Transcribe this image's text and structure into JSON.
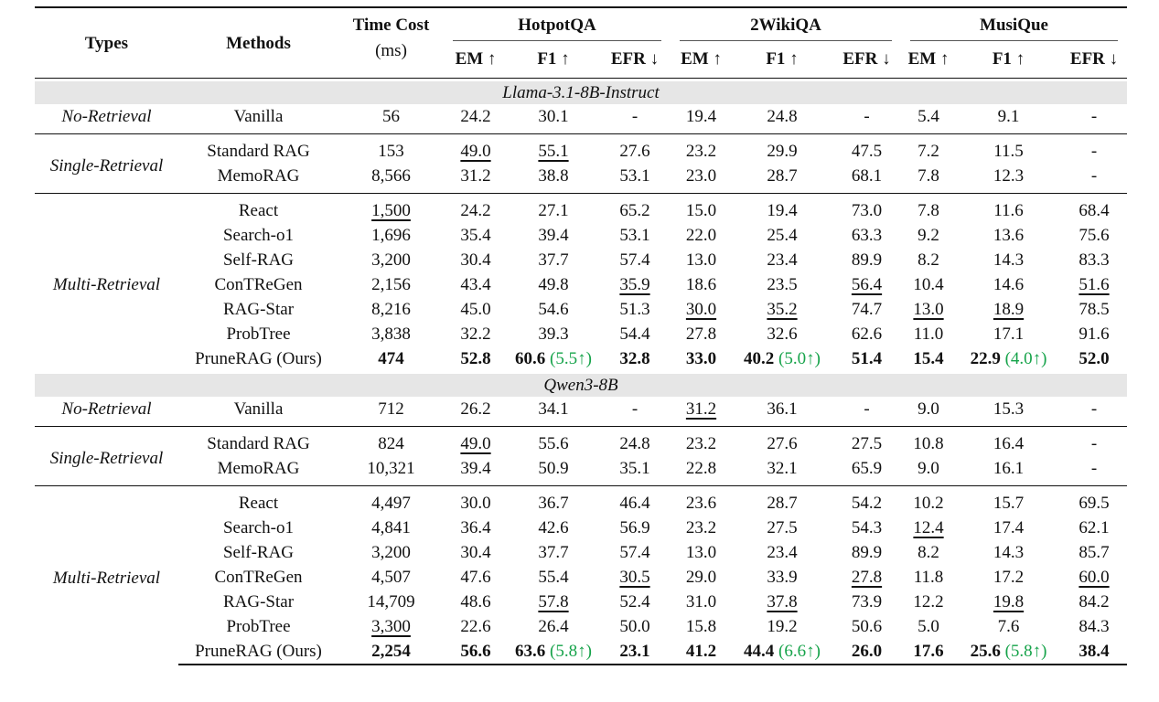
{
  "header": {
    "types": "Types",
    "methods": "Methods",
    "time_cost": "Time Cost",
    "time_unit": "(ms)",
    "datasets": [
      "HotpotQA",
      "2WikiQA",
      "MusiQue"
    ],
    "metrics": [
      "EM ↑",
      "F1 ↑",
      "EFR ↓"
    ]
  },
  "colors": {
    "gain": "#16a34a",
    "band": "#e6e6e6"
  },
  "groups": [
    {
      "model": "Llama-3.1-8B-Instruct",
      "sections": [
        {
          "type": "No-Retrieval",
          "rows": [
            {
              "method": "Vanilla",
              "time": {
                "v": "56"
              },
              "cells": [
                {
                  "v": "24.2"
                },
                {
                  "v": "30.1"
                },
                {
                  "v": "-"
                },
                {
                  "v": "19.4"
                },
                {
                  "v": "24.8"
                },
                {
                  "v": "-"
                },
                {
                  "v": "5.4"
                },
                {
                  "v": "9.1"
                },
                {
                  "v": "-"
                }
              ]
            }
          ]
        },
        {
          "type": "Single-Retrieval",
          "rows": [
            {
              "method": "Standard RAG",
              "time": {
                "v": "153"
              },
              "cells": [
                {
                  "v": "49.0",
                  "u": true
                },
                {
                  "v": "55.1",
                  "u": true
                },
                {
                  "v": "27.6"
                },
                {
                  "v": "23.2"
                },
                {
                  "v": "29.9"
                },
                {
                  "v": "47.5"
                },
                {
                  "v": "7.2"
                },
                {
                  "v": "11.5"
                },
                {
                  "v": "-"
                }
              ]
            },
            {
              "method": "MemoRAG",
              "time": {
                "v": "8,566"
              },
              "cells": [
                {
                  "v": "31.2"
                },
                {
                  "v": "38.8"
                },
                {
                  "v": "53.1"
                },
                {
                  "v": "23.0"
                },
                {
                  "v": "28.7"
                },
                {
                  "v": "68.1"
                },
                {
                  "v": "7.8"
                },
                {
                  "v": "12.3"
                },
                {
                  "v": "-"
                }
              ]
            }
          ]
        },
        {
          "type": "Multi-Retrieval",
          "rows": [
            {
              "method": "React",
              "time": {
                "v": "1,500",
                "u": true
              },
              "cells": [
                {
                  "v": "24.2"
                },
                {
                  "v": "27.1"
                },
                {
                  "v": "65.2"
                },
                {
                  "v": "15.0"
                },
                {
                  "v": "19.4"
                },
                {
                  "v": "73.0"
                },
                {
                  "v": "7.8"
                },
                {
                  "v": "11.6"
                },
                {
                  "v": "68.4"
                }
              ]
            },
            {
              "method": "Search-o1",
              "time": {
                "v": "1,696"
              },
              "cells": [
                {
                  "v": "35.4"
                },
                {
                  "v": "39.4"
                },
                {
                  "v": "53.1"
                },
                {
                  "v": "22.0"
                },
                {
                  "v": "25.4"
                },
                {
                  "v": "63.3"
                },
                {
                  "v": "9.2"
                },
                {
                  "v": "13.6"
                },
                {
                  "v": "75.6"
                }
              ]
            },
            {
              "method": "Self-RAG",
              "time": {
                "v": "3,200"
              },
              "cells": [
                {
                  "v": "30.4"
                },
                {
                  "v": "37.7"
                },
                {
                  "v": "57.4"
                },
                {
                  "v": "13.0"
                },
                {
                  "v": "23.4"
                },
                {
                  "v": "89.9"
                },
                {
                  "v": "8.2"
                },
                {
                  "v": "14.3"
                },
                {
                  "v": "83.3"
                }
              ]
            },
            {
              "method": "ConTReGen",
              "time": {
                "v": "2,156"
              },
              "cells": [
                {
                  "v": "43.4"
                },
                {
                  "v": "49.8"
                },
                {
                  "v": "35.9",
                  "u": true
                },
                {
                  "v": "18.6"
                },
                {
                  "v": "23.5"
                },
                {
                  "v": "56.4",
                  "u": true
                },
                {
                  "v": "10.4"
                },
                {
                  "v": "14.6"
                },
                {
                  "v": "51.6",
                  "u": true
                }
              ]
            },
            {
              "method": "RAG-Star",
              "time": {
                "v": "8,216"
              },
              "cells": [
                {
                  "v": "45.0"
                },
                {
                  "v": "54.6"
                },
                {
                  "v": "51.3"
                },
                {
                  "v": "30.0",
                  "u": true
                },
                {
                  "v": "35.2",
                  "u": true
                },
                {
                  "v": "74.7"
                },
                {
                  "v": "13.0",
                  "u": true
                },
                {
                  "v": "18.9",
                  "u": true
                },
                {
                  "v": "78.5"
                }
              ]
            },
            {
              "method": "ProbTree",
              "time": {
                "v": "3,838"
              },
              "cells": [
                {
                  "v": "32.2"
                },
                {
                  "v": "39.3"
                },
                {
                  "v": "54.4"
                },
                {
                  "v": "27.8"
                },
                {
                  "v": "32.6"
                },
                {
                  "v": "62.6"
                },
                {
                  "v": "11.0"
                },
                {
                  "v": "17.1"
                },
                {
                  "v": "91.6"
                }
              ]
            },
            {
              "method": "PruneRAG (Ours)",
              "time": {
                "v": "474",
                "b": true
              },
              "cells": [
                {
                  "v": "52.8",
                  "b": true
                },
                {
                  "v": "60.6",
                  "b": true,
                  "gain": "(5.5↑)"
                },
                {
                  "v": "32.8",
                  "b": true
                },
                {
                  "v": "33.0",
                  "b": true
                },
                {
                  "v": "40.2",
                  "b": true,
                  "gain": "(5.0↑)"
                },
                {
                  "v": "51.4",
                  "b": true
                },
                {
                  "v": "15.4",
                  "b": true
                },
                {
                  "v": "22.9",
                  "b": true,
                  "gain": "(4.0↑)"
                },
                {
                  "v": "52.0",
                  "b": true
                }
              ]
            }
          ]
        }
      ]
    },
    {
      "model": "Qwen3-8B",
      "sections": [
        {
          "type": "No-Retrieval",
          "rows": [
            {
              "method": "Vanilla",
              "time": {
                "v": "712"
              },
              "cells": [
                {
                  "v": "26.2"
                },
                {
                  "v": "34.1"
                },
                {
                  "v": "-"
                },
                {
                  "v": "31.2",
                  "u": true
                },
                {
                  "v": "36.1"
                },
                {
                  "v": "-"
                },
                {
                  "v": "9.0"
                },
                {
                  "v": "15.3"
                },
                {
                  "v": "-"
                }
              ]
            }
          ]
        },
        {
          "type": "Single-Retrieval",
          "rows": [
            {
              "method": "Standard RAG",
              "time": {
                "v": "824"
              },
              "cells": [
                {
                  "v": "49.0",
                  "u": true
                },
                {
                  "v": "55.6"
                },
                {
                  "v": "24.8"
                },
                {
                  "v": "23.2"
                },
                {
                  "v": "27.6"
                },
                {
                  "v": "27.5"
                },
                {
                  "v": "10.8"
                },
                {
                  "v": "16.4"
                },
                {
                  "v": "-"
                }
              ]
            },
            {
              "method": "MemoRAG",
              "time": {
                "v": "10,321"
              },
              "cells": [
                {
                  "v": "39.4"
                },
                {
                  "v": "50.9"
                },
                {
                  "v": "35.1"
                },
                {
                  "v": "22.8"
                },
                {
                  "v": "32.1"
                },
                {
                  "v": "65.9"
                },
                {
                  "v": "9.0"
                },
                {
                  "v": "16.1"
                },
                {
                  "v": "-"
                }
              ]
            }
          ]
        },
        {
          "type": "Multi-Retrieval",
          "rows": [
            {
              "method": "React",
              "time": {
                "v": "4,497"
              },
              "cells": [
                {
                  "v": "30.0"
                },
                {
                  "v": "36.7"
                },
                {
                  "v": "46.4"
                },
                {
                  "v": "23.6"
                },
                {
                  "v": "28.7"
                },
                {
                  "v": "54.2"
                },
                {
                  "v": "10.2"
                },
                {
                  "v": "15.7"
                },
                {
                  "v": "69.5"
                }
              ]
            },
            {
              "method": "Search-o1",
              "time": {
                "v": "4,841"
              },
              "cells": [
                {
                  "v": "36.4"
                },
                {
                  "v": "42.6"
                },
                {
                  "v": "56.9"
                },
                {
                  "v": "23.2"
                },
                {
                  "v": "27.5"
                },
                {
                  "v": "54.3"
                },
                {
                  "v": "12.4",
                  "u": true
                },
                {
                  "v": "17.4"
                },
                {
                  "v": "62.1"
                }
              ]
            },
            {
              "method": "Self-RAG",
              "time": {
                "v": "3,200"
              },
              "cells": [
                {
                  "v": "30.4"
                },
                {
                  "v": "37.7"
                },
                {
                  "v": "57.4"
                },
                {
                  "v": "13.0"
                },
                {
                  "v": "23.4"
                },
                {
                  "v": "89.9"
                },
                {
                  "v": "8.2"
                },
                {
                  "v": "14.3"
                },
                {
                  "v": "85.7"
                }
              ]
            },
            {
              "method": "ConTReGen",
              "time": {
                "v": "4,507"
              },
              "cells": [
                {
                  "v": "47.6"
                },
                {
                  "v": "55.4"
                },
                {
                  "v": "30.5",
                  "u": true
                },
                {
                  "v": "29.0"
                },
                {
                  "v": "33.9"
                },
                {
                  "v": "27.8",
                  "u": true
                },
                {
                  "v": "11.8"
                },
                {
                  "v": "17.2"
                },
                {
                  "v": "60.0",
                  "u": true
                }
              ]
            },
            {
              "method": "RAG-Star",
              "time": {
                "v": "14,709"
              },
              "cells": [
                {
                  "v": "48.6"
                },
                {
                  "v": "57.8",
                  "u": true
                },
                {
                  "v": "52.4"
                },
                {
                  "v": "31.0"
                },
                {
                  "v": "37.8",
                  "u": true
                },
                {
                  "v": "73.9"
                },
                {
                  "v": "12.2"
                },
                {
                  "v": "19.8",
                  "u": true
                },
                {
                  "v": "84.2"
                }
              ]
            },
            {
              "method": "ProbTree",
              "time": {
                "v": "3,300",
                "u": true
              },
              "cells": [
                {
                  "v": "22.6"
                },
                {
                  "v": "26.4"
                },
                {
                  "v": "50.0"
                },
                {
                  "v": "15.8"
                },
                {
                  "v": "19.2"
                },
                {
                  "v": "50.6"
                },
                {
                  "v": "5.0"
                },
                {
                  "v": "7.6"
                },
                {
                  "v": "84.3"
                }
              ]
            },
            {
              "method": "PruneRAG (Ours)",
              "time": {
                "v": "2,254",
                "b": true
              },
              "cells": [
                {
                  "v": "56.6",
                  "b": true
                },
                {
                  "v": "63.6",
                  "b": true,
                  "gain": "(5.8↑)"
                },
                {
                  "v": "23.1",
                  "b": true
                },
                {
                  "v": "41.2",
                  "b": true
                },
                {
                  "v": "44.4",
                  "b": true,
                  "gain": "(6.6↑)"
                },
                {
                  "v": "26.0",
                  "b": true
                },
                {
                  "v": "17.6",
                  "b": true
                },
                {
                  "v": "25.6",
                  "b": true,
                  "gain": "(5.8↑)"
                },
                {
                  "v": "38.4",
                  "b": true
                }
              ]
            }
          ]
        }
      ]
    }
  ]
}
